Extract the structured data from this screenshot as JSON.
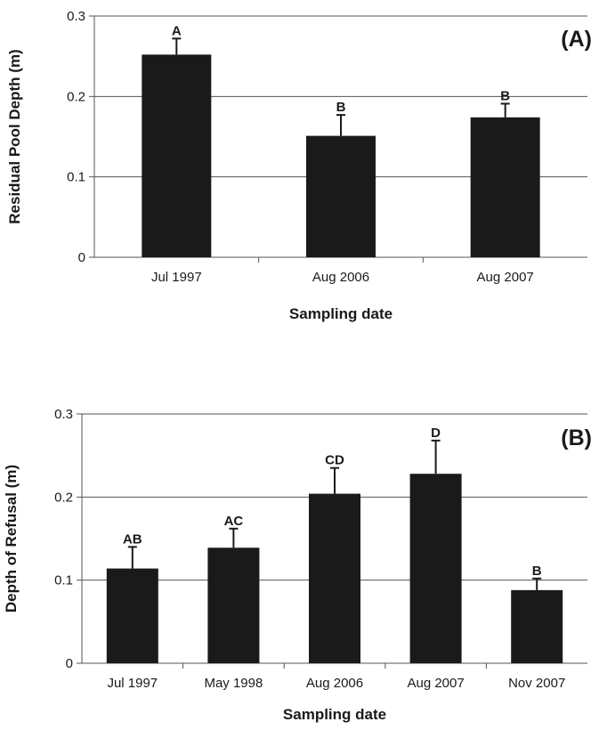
{
  "chart_data": [
    {
      "type": "bar",
      "panel_label": "(A)",
      "categories": [
        "Jul 1997",
        "Aug 2006",
        "Aug 2007"
      ],
      "values": [
        0.252,
        0.151,
        0.174
      ],
      "errors": [
        0.02,
        0.026,
        0.017
      ],
      "significance_letters": [
        "A",
        "B",
        "B"
      ],
      "xlabel": "Sampling date",
      "ylabel": "Residual Pool Depth (m)",
      "ylim": [
        0,
        0.3
      ],
      "yticks": [
        "0",
        "0.1",
        "0.2",
        "0.3"
      ],
      "grid": "horizontal",
      "legend": "none",
      "bar_color": "#1a1a1a"
    },
    {
      "type": "bar",
      "panel_label": "(B)",
      "categories": [
        "Jul 1997",
        "May 1998",
        "Aug 2006",
        "Aug 2007",
        "Nov 2007"
      ],
      "values": [
        0.114,
        0.139,
        0.204,
        0.228,
        0.088
      ],
      "errors": [
        0.026,
        0.023,
        0.031,
        0.04,
        0.014
      ],
      "significance_letters": [
        "AB",
        "AC",
        "CD",
        "D",
        "B"
      ],
      "xlabel": "Sampling date",
      "ylabel": "Depth of Refusal (m)",
      "ylim": [
        0,
        0.3
      ],
      "yticks": [
        "0",
        "0.1",
        "0.2",
        "0.3"
      ],
      "grid": "horizontal",
      "legend": "none",
      "bar_color": "#1a1a1a"
    }
  ]
}
